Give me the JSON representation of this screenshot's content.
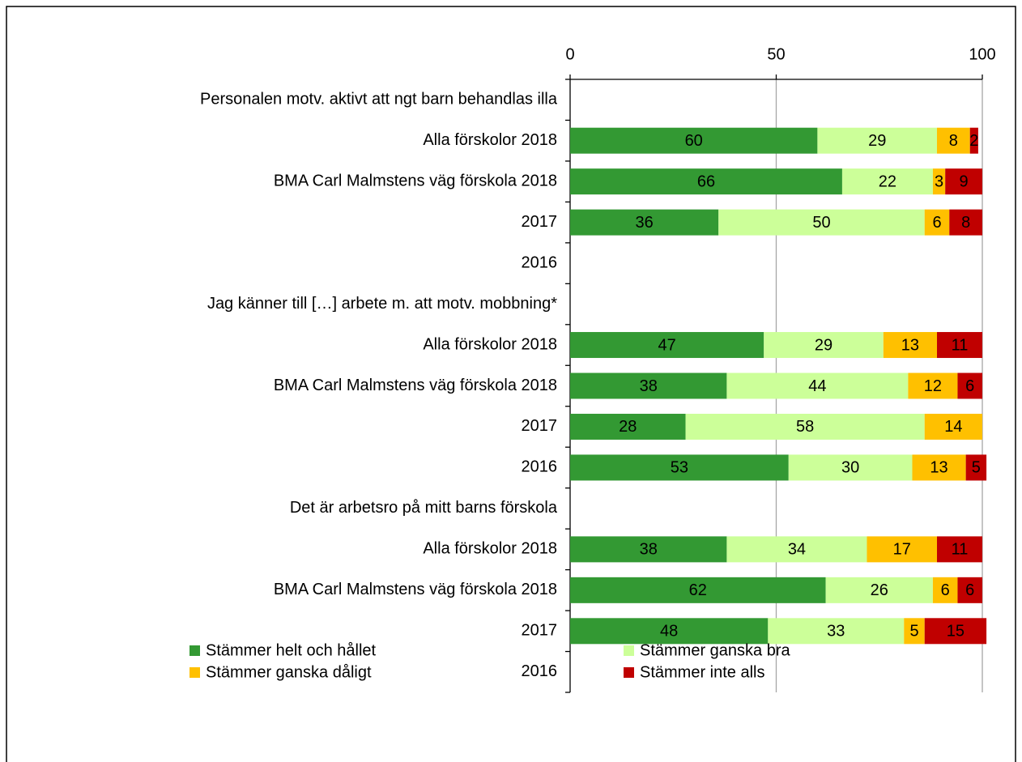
{
  "chart_data": {
    "type": "stacked-barh",
    "categories": [
      "Personalen motv. aktivt att ngt barn behandlas illa",
      "Alla förskolor 2018",
      "BMA Carl Malmstens väg förskola 2018",
      "2017",
      "2016",
      "Jag känner till […] arbete m. att motv. mobbning*",
      "Alla förskolor 2018",
      "BMA Carl Malmstens väg förskola 2018",
      "2017",
      "2016",
      "Det är arbetsro på mitt barns förskola",
      "Alla förskolor 2018",
      "BMA Carl Malmstens väg förskola 2018",
      "2017",
      "2016"
    ],
    "series": [
      {
        "name": "Stämmer helt och hållet",
        "color": "#339933",
        "values": [
          null,
          60,
          66,
          36,
          null,
          null,
          47,
          38,
          28,
          53,
          null,
          38,
          62,
          48,
          null
        ]
      },
      {
        "name": "Stämmer ganska bra",
        "color": "#ccff99",
        "values": [
          null,
          29,
          22,
          50,
          null,
          null,
          29,
          44,
          58,
          30,
          null,
          34,
          26,
          33,
          null
        ]
      },
      {
        "name": "Stämmer ganska dåligt",
        "color": "#ffc000",
        "values": [
          null,
          8,
          3,
          6,
          null,
          null,
          13,
          12,
          14,
          13,
          null,
          17,
          6,
          5,
          null
        ]
      },
      {
        "name": "Stämmer inte alls",
        "color": "#c00000",
        "values": [
          null,
          2,
          9,
          8,
          null,
          null,
          11,
          6,
          null,
          5,
          null,
          11,
          6,
          15,
          null
        ]
      }
    ],
    "xlim": [
      0,
      100
    ],
    "xticks": [
      0,
      50,
      100
    ],
    "grid": true
  }
}
